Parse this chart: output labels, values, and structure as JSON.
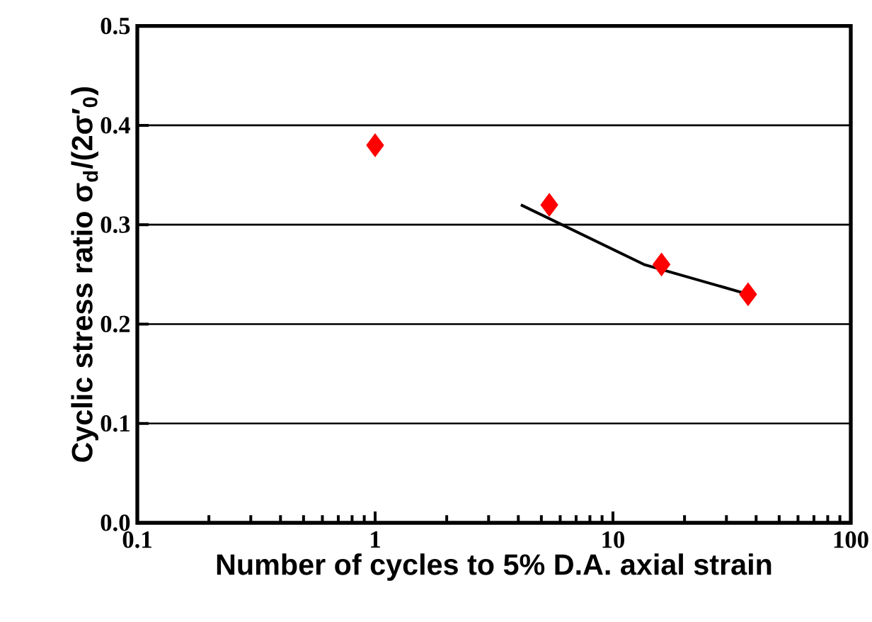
{
  "chart_data": {
    "type": "scatter",
    "xlabel": "Number of cycles to 5% D.A. axial strain",
    "ylabel": "Cyclic stress ratio σ$_{d}$/(2σ′$_{0}$)",
    "log": "x",
    "grid": "y",
    "xlim": [
      0.1,
      100
    ],
    "xticks": [
      0.1,
      1,
      10,
      100
    ],
    "ylim": [
      0,
      0.5
    ],
    "yticks": [
      {
        "value": 0,
        "label": "0.0"
      },
      {
        "value": 0.1,
        "label": "0.1"
      },
      {
        "value": 0.2,
        "label": "0.2"
      },
      {
        "value": 0.3,
        "label": "0.3"
      },
      {
        "value": 0.4,
        "label": "0.4"
      },
      {
        "value": 0.5,
        "label": "0.5"
      }
    ],
    "series": [
      {
        "color": "#ff0000",
        "marker": "diamond",
        "x": [
          1,
          5.4,
          16,
          37
        ],
        "values": [
          0.38,
          0.32,
          0.26,
          0.23
        ]
      },
      {
        "type": "line",
        "color": "#000000",
        "marker": "none",
        "line_style": "solid",
        "x": [
          4.1,
          13.5,
          37
        ],
        "values": [
          0.32,
          0.26,
          0.23
        ]
      }
    ]
  }
}
